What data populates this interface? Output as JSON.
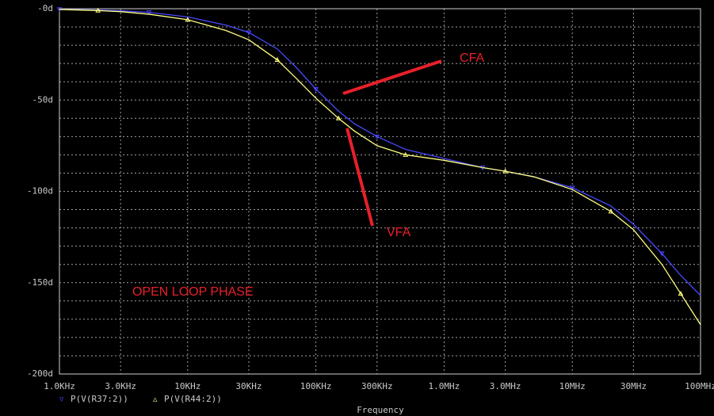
{
  "chart_data": {
    "type": "line",
    "x_label": "Frequency",
    "x_log": true,
    "x": [
      1000,
      2000,
      3000,
      5000,
      10000,
      20000,
      30000,
      50000,
      70000,
      100000,
      150000,
      200000,
      300000,
      500000,
      1000000,
      2000000,
      3000000,
      5000000,
      10000000,
      20000000,
      30000000,
      50000000,
      70000000,
      100000000
    ],
    "series": [
      {
        "name": "P(V(R37:2))",
        "color": "#4848ff",
        "marker": "▽",
        "values": [
          -0.3,
          -0.7,
          -1.1,
          -2,
          -4.5,
          -9,
          -13,
          -22,
          -32,
          -44,
          -56,
          -63,
          -70,
          -77,
          -82,
          -87,
          -89,
          -92,
          -98,
          -108,
          -118,
          -134,
          -146,
          -157
        ]
      },
      {
        "name": "P(V(R44:2))",
        "color": "#ffff80",
        "marker": "△",
        "values": [
          -0.4,
          -1,
          -1.6,
          -3,
          -6,
          -12,
          -17,
          -28,
          -38,
          -49,
          -60,
          -67,
          -75,
          -80,
          -83,
          -87,
          -89,
          -92,
          -99,
          -111,
          -121,
          -140,
          -156,
          -173
        ]
      }
    ],
    "xlim": [
      1000,
      100000000
    ],
    "xticks": [
      {
        "value": 1000,
        "label": "1.0KHz"
      },
      {
        "value": 3000,
        "label": "3.0KHz"
      },
      {
        "value": 10000,
        "label": "10KHz"
      },
      {
        "value": 30000,
        "label": "30KHz"
      },
      {
        "value": 100000,
        "label": "100KHz"
      },
      {
        "value": 300000,
        "label": "300KHz"
      },
      {
        "value": 1000000,
        "label": "1.0MHz"
      },
      {
        "value": 3000000,
        "label": "3.0MHz"
      },
      {
        "value": 10000000,
        "label": "10MHz"
      },
      {
        "value": 30000000,
        "label": "30MHz"
      },
      {
        "value": 100000000,
        "label": "100MHz"
      }
    ],
    "ylim": [
      -200,
      0
    ],
    "yticks": [
      {
        "value": 0,
        "label": "-0d"
      },
      {
        "value": -50,
        "label": "-50d"
      },
      {
        "value": -100,
        "label": "-100d"
      },
      {
        "value": -150,
        "label": "-150d"
      },
      {
        "value": -200,
        "label": "-200d"
      }
    ],
    "minor_yticks": [
      -10,
      -20,
      -30,
      -40,
      -60,
      -70,
      -80,
      -90,
      -110,
      -120,
      -130,
      -140,
      -160,
      -170,
      -180,
      -190
    ],
    "grid": true,
    "annotations": [
      "CFA",
      "VFA",
      "OPEN LOOP PHASE"
    ]
  }
}
